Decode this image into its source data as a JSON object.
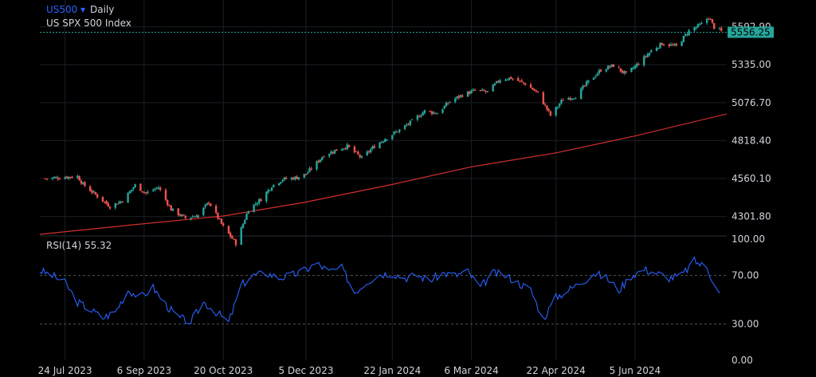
{
  "header": {
    "symbol": "US500",
    "symbol_arrow": "▾",
    "interval": "Daily",
    "description": "US SPX 500 Index"
  },
  "price_axis": {
    "ticks": [
      "5592.90",
      "5335.00",
      "5076.70",
      "4818.40",
      "4560.10",
      "4301.80"
    ],
    "last_price_label": "5556.25"
  },
  "rsi_panel": {
    "title": "RSI(14) 55.32",
    "ticks": [
      "100.00",
      "70.00",
      "30.00",
      "0.00"
    ]
  },
  "time_axis": {
    "labels": [
      "24 Jul 2023",
      "6 Sep 2023",
      "20 Oct 2023",
      "5 Dec 2023",
      "22 Jan 2024",
      "6 Mar 2024",
      "22 Apr 2024",
      "5 Jun 2024"
    ]
  },
  "colors": {
    "background": "#000000",
    "up_candle": "#26a69a",
    "down_candle": "#ef5350",
    "moving_average": "#d32f2f",
    "rsi_line": "#2962ff",
    "last_price_badge": "#26a69a",
    "symbol_text": "#2962ff"
  },
  "chart_data": [
    {
      "type": "candlestick",
      "title": "US SPX 500 Index",
      "x_range": [
        "2023-07-10",
        "2024-07-26"
      ],
      "ylim": [
        4180,
        5700
      ],
      "last_price": 5556.25,
      "close_series": [
        [
          "2023-07-13",
          4560
        ],
        [
          "2023-07-24",
          4570
        ],
        [
          "2023-07-31",
          4575
        ],
        [
          "2023-08-03",
          4520
        ],
        [
          "2023-08-18",
          4370
        ],
        [
          "2023-08-25",
          4410
        ],
        [
          "2023-09-01",
          4515
        ],
        [
          "2023-09-07",
          4460
        ],
        [
          "2023-09-14",
          4500
        ],
        [
          "2023-09-21",
          4350
        ],
        [
          "2023-09-29",
          4290
        ],
        [
          "2023-10-06",
          4310
        ],
        [
          "2023-10-12",
          4400
        ],
        [
          "2023-10-20",
          4230
        ],
        [
          "2023-10-27",
          4120
        ],
        [
          "2023-11-03",
          4350
        ],
        [
          "2023-11-10",
          4420
        ],
        [
          "2023-11-16",
          4510
        ],
        [
          "2023-11-22",
          4555
        ],
        [
          "2023-11-30",
          4567
        ],
        [
          "2023-12-05",
          4590
        ],
        [
          "2023-12-15",
          4720
        ],
        [
          "2023-12-22",
          4755
        ],
        [
          "2023-12-28",
          4780
        ],
        [
          "2024-01-05",
          4700
        ],
        [
          "2024-01-12",
          4780
        ],
        [
          "2024-01-19",
          4840
        ],
        [
          "2024-01-26",
          4890
        ],
        [
          "2024-02-02",
          4950
        ],
        [
          "2024-02-09",
          5020
        ],
        [
          "2024-02-16",
          5005
        ],
        [
          "2024-02-23",
          5085
        ],
        [
          "2024-03-01",
          5130
        ],
        [
          "2024-03-08",
          5160
        ],
        [
          "2024-03-15",
          5150
        ],
        [
          "2024-03-22",
          5235
        ],
        [
          "2024-03-28",
          5245
        ],
        [
          "2024-04-05",
          5205
        ],
        [
          "2024-04-12",
          5140
        ],
        [
          "2024-04-19",
          4990
        ],
        [
          "2024-04-26",
          5100
        ],
        [
          "2024-05-03",
          5120
        ],
        [
          "2024-05-10",
          5220
        ],
        [
          "2024-05-17",
          5300
        ],
        [
          "2024-05-24",
          5330
        ],
        [
          "2024-05-31",
          5270
        ],
        [
          "2024-06-07",
          5345
        ],
        [
          "2024-06-14",
          5430
        ],
        [
          "2024-06-20",
          5480
        ],
        [
          "2024-06-28",
          5460
        ],
        [
          "2024-07-05",
          5567
        ],
        [
          "2024-07-12",
          5610
        ],
        [
          "2024-07-16",
          5660
        ],
        [
          "2024-07-19",
          5590
        ],
        [
          "2024-07-24",
          5556
        ]
      ],
      "moving_average": {
        "color": "#d32f2f",
        "points": [
          [
            "2023-07-10",
            4180
          ],
          [
            "2023-08-31",
            4245
          ],
          [
            "2023-10-20",
            4305
          ],
          [
            "2023-12-05",
            4400
          ],
          [
            "2024-01-22",
            4520
          ],
          [
            "2024-03-06",
            4640
          ],
          [
            "2024-04-22",
            4735
          ],
          [
            "2024-06-05",
            4850
          ],
          [
            "2024-07-26",
            5000
          ]
        ]
      }
    },
    {
      "type": "line",
      "title": "RSI(14) 55.32",
      "ylim": [
        0,
        100
      ],
      "reference_lines": [
        70,
        30
      ],
      "x": [
        "2023-07-10",
        "2023-07-17",
        "2023-07-24",
        "2023-07-31",
        "2023-08-07",
        "2023-08-14",
        "2023-08-21",
        "2023-08-28",
        "2023-09-04",
        "2023-09-11",
        "2023-09-18",
        "2023-09-25",
        "2023-10-02",
        "2023-10-09",
        "2023-10-16",
        "2023-10-23",
        "2023-10-30",
        "2023-11-06",
        "2023-11-13",
        "2023-11-20",
        "2023-11-27",
        "2023-12-04",
        "2023-12-11",
        "2023-12-18",
        "2023-12-25",
        "2024-01-01",
        "2024-01-08",
        "2024-01-15",
        "2024-01-22",
        "2024-01-29",
        "2024-02-05",
        "2024-02-12",
        "2024-02-19",
        "2024-02-26",
        "2024-03-04",
        "2024-03-11",
        "2024-03-18",
        "2024-03-25",
        "2024-04-01",
        "2024-04-08",
        "2024-04-15",
        "2024-04-22",
        "2024-04-29",
        "2024-05-06",
        "2024-05-13",
        "2024-05-20",
        "2024-05-27",
        "2024-06-03",
        "2024-06-10",
        "2024-06-17",
        "2024-06-24",
        "2024-07-01",
        "2024-07-08",
        "2024-07-15",
        "2024-07-22"
      ],
      "values": [
        74,
        70,
        64,
        48,
        42,
        35,
        40,
        58,
        52,
        60,
        46,
        35,
        32,
        48,
        40,
        31,
        62,
        70,
        72,
        68,
        70,
        74,
        80,
        73,
        76,
        56,
        65,
        71,
        72,
        68,
        70,
        66,
        72,
        70,
        73,
        60,
        72,
        70,
        64,
        58,
        34,
        52,
        58,
        64,
        72,
        68,
        58,
        70,
        75,
        72,
        68,
        70,
        82,
        76,
        55.32
      ]
    }
  ]
}
